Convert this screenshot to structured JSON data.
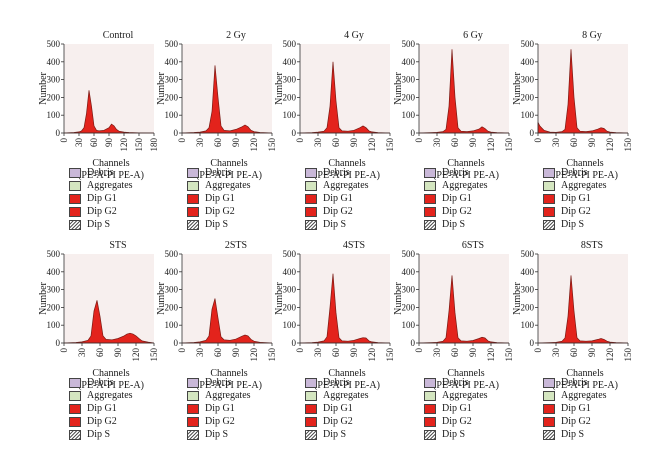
{
  "colors": {
    "plot_bg": "#f7efee",
    "fill": "#e3231c",
    "fill_edge": "#7a1a14",
    "debris": "#c9b8d8",
    "aggregates": "#d4e6c0",
    "dip_g1": "#e3231c",
    "dip_g2": "#e3231c",
    "axis": "#333333"
  },
  "common": {
    "ylabel": "Number",
    "xlabel_line1": "Channels",
    "xlabel_line2": "(PE-A-PI PE-A)",
    "legend": [
      {
        "label": "Debris",
        "icon": "debris-swatch"
      },
      {
        "label": "Aggregates",
        "icon": "aggregates-swatch"
      },
      {
        "label": "Dip G1",
        "icon": "dip-g1-swatch"
      },
      {
        "label": "Dip G2",
        "icon": "dip-g2-swatch"
      },
      {
        "label": "Dip S",
        "icon": "dip-s-swatch"
      }
    ]
  },
  "chart_data": [
    {
      "type": "area",
      "title": "Control",
      "xlabel": "Channels (PE-A-PI PE-A)",
      "ylabel": "Number",
      "xlim": [
        0,
        180
      ],
      "ylim": [
        0,
        500
      ],
      "xticks": [
        0,
        30,
        60,
        90,
        120,
        150,
        180
      ],
      "yticks": [
        0,
        100,
        200,
        300,
        400,
        500
      ],
      "x": [
        0,
        20,
        30,
        35,
        40,
        45,
        50,
        55,
        60,
        65,
        70,
        80,
        90,
        95,
        100,
        105,
        110,
        120,
        130,
        150,
        180
      ],
      "y": [
        0,
        3,
        6,
        12,
        30,
        110,
        240,
        150,
        40,
        15,
        12,
        15,
        30,
        50,
        40,
        20,
        10,
        5,
        3,
        1,
        0
      ]
    },
    {
      "type": "area",
      "title": "2 Gy",
      "xlabel": "Channels (PE-A-PI PE-A)",
      "ylabel": "Number",
      "xlim": [
        0,
        150
      ],
      "ylim": [
        0,
        500
      ],
      "xticks": [
        0,
        30,
        60,
        90,
        120,
        150
      ],
      "yticks": [
        0,
        100,
        200,
        300,
        400,
        500
      ],
      "x": [
        0,
        20,
        30,
        40,
        45,
        50,
        55,
        60,
        65,
        70,
        80,
        90,
        100,
        105,
        110,
        115,
        120,
        130,
        150
      ],
      "y": [
        0,
        3,
        5,
        12,
        30,
        120,
        380,
        200,
        40,
        15,
        12,
        20,
        35,
        45,
        35,
        15,
        8,
        3,
        0
      ]
    },
    {
      "type": "area",
      "title": "4 Gy",
      "xlabel": "Channels (PE-A-PI PE-A)",
      "ylabel": "Number",
      "xlim": [
        0,
        150
      ],
      "ylim": [
        0,
        500
      ],
      "xticks": [
        0,
        30,
        60,
        90,
        120,
        150
      ],
      "yticks": [
        0,
        100,
        200,
        300,
        400,
        500
      ],
      "x": [
        0,
        20,
        30,
        40,
        45,
        50,
        55,
        60,
        65,
        70,
        80,
        90,
        100,
        105,
        110,
        115,
        120,
        130,
        150
      ],
      "y": [
        0,
        2,
        5,
        10,
        30,
        150,
        400,
        180,
        30,
        12,
        10,
        15,
        30,
        40,
        30,
        12,
        6,
        2,
        0
      ]
    },
    {
      "type": "area",
      "title": "6 Gy",
      "xlabel": "Channels (PE-A-PI PE-A)",
      "ylabel": "Number",
      "xlim": [
        0,
        150
      ],
      "ylim": [
        0,
        500
      ],
      "xticks": [
        0,
        30,
        60,
        90,
        120,
        150
      ],
      "yticks": [
        0,
        100,
        200,
        300,
        400,
        500
      ],
      "x": [
        0,
        20,
        30,
        40,
        45,
        50,
        55,
        60,
        65,
        70,
        80,
        90,
        100,
        105,
        110,
        115,
        120,
        130,
        150
      ],
      "y": [
        0,
        2,
        4,
        8,
        20,
        150,
        470,
        200,
        30,
        10,
        8,
        12,
        22,
        35,
        25,
        10,
        5,
        2,
        0
      ]
    },
    {
      "type": "area",
      "title": "8 Gy",
      "xlabel": "Channels (PE-A-PI PE-A)",
      "ylabel": "Number",
      "xlim": [
        0,
        150
      ],
      "ylim": [
        0,
        500
      ],
      "xticks": [
        0,
        30,
        60,
        90,
        120,
        150
      ],
      "yticks": [
        0,
        100,
        200,
        300,
        400,
        500
      ],
      "x": [
        0,
        3,
        10,
        20,
        30,
        40,
        45,
        50,
        55,
        60,
        65,
        70,
        80,
        90,
        100,
        105,
        110,
        115,
        120,
        130,
        150
      ],
      "y": [
        60,
        40,
        15,
        5,
        4,
        8,
        20,
        160,
        470,
        200,
        30,
        10,
        8,
        12,
        22,
        30,
        25,
        10,
        5,
        2,
        0
      ]
    },
    {
      "type": "area",
      "title": "STS",
      "xlabel": "Channels (PE-A-PI PE-A)",
      "ylabel": "Number",
      "xlim": [
        0,
        150
      ],
      "ylim": [
        0,
        500
      ],
      "xticks": [
        0,
        30,
        60,
        90,
        120,
        150
      ],
      "yticks": [
        0,
        100,
        200,
        300,
        400,
        500
      ],
      "x": [
        0,
        20,
        30,
        40,
        45,
        50,
        55,
        60,
        65,
        70,
        80,
        90,
        100,
        105,
        110,
        115,
        120,
        125,
        130,
        140,
        150
      ],
      "y": [
        0,
        3,
        6,
        15,
        40,
        180,
        240,
        150,
        40,
        20,
        18,
        25,
        40,
        50,
        55,
        50,
        40,
        25,
        12,
        5,
        0
      ]
    },
    {
      "type": "area",
      "title": "2STS",
      "xlabel": "Channels (PE-A-PI PE-A)",
      "ylabel": "Number",
      "xlim": [
        0,
        150
      ],
      "ylim": [
        0,
        500
      ],
      "xticks": [
        0,
        30,
        60,
        90,
        120,
        150
      ],
      "yticks": [
        0,
        100,
        200,
        300,
        400,
        500
      ],
      "x": [
        0,
        20,
        30,
        40,
        45,
        50,
        55,
        60,
        65,
        70,
        80,
        90,
        100,
        105,
        110,
        115,
        120,
        130,
        150
      ],
      "y": [
        0,
        3,
        6,
        15,
        40,
        190,
        250,
        140,
        35,
        18,
        15,
        22,
        38,
        45,
        40,
        20,
        10,
        4,
        0
      ]
    },
    {
      "type": "area",
      "title": "4STS",
      "xlabel": "Channels (PE-A-PI PE-A)",
      "ylabel": "Number",
      "xlim": [
        0,
        150
      ],
      "ylim": [
        0,
        500
      ],
      "xticks": [
        0,
        30,
        60,
        90,
        120,
        150
      ],
      "yticks": [
        0,
        100,
        200,
        300,
        400,
        500
      ],
      "x": [
        0,
        20,
        30,
        40,
        45,
        50,
        55,
        60,
        65,
        70,
        80,
        90,
        100,
        105,
        110,
        115,
        120,
        130,
        150
      ],
      "y": [
        0,
        2,
        5,
        12,
        35,
        200,
        390,
        170,
        30,
        12,
        10,
        15,
        25,
        30,
        28,
        12,
        6,
        2,
        0
      ]
    },
    {
      "type": "area",
      "title": "6STS",
      "xlabel": "Channels (PE-A-PI PE-A)",
      "ylabel": "Number",
      "xlim": [
        0,
        150
      ],
      "ylim": [
        0,
        500
      ],
      "xticks": [
        0,
        30,
        60,
        90,
        120,
        150
      ],
      "yticks": [
        0,
        100,
        200,
        300,
        400,
        500
      ],
      "x": [
        0,
        20,
        30,
        40,
        45,
        50,
        55,
        60,
        65,
        70,
        80,
        90,
        100,
        105,
        110,
        115,
        120,
        130,
        150
      ],
      "y": [
        0,
        2,
        4,
        10,
        30,
        180,
        380,
        170,
        30,
        12,
        10,
        14,
        25,
        32,
        28,
        12,
        6,
        2,
        0
      ]
    },
    {
      "type": "area",
      "title": "8STS",
      "xlabel": "Channels (PE-A-PI PE-A)",
      "ylabel": "Number",
      "xlim": [
        0,
        150
      ],
      "ylim": [
        0,
        500
      ],
      "xticks": [
        0,
        30,
        60,
        90,
        120,
        150
      ],
      "yticks": [
        0,
        100,
        200,
        300,
        400,
        500
      ],
      "x": [
        0,
        20,
        30,
        40,
        45,
        50,
        55,
        60,
        65,
        70,
        80,
        90,
        100,
        105,
        110,
        115,
        120,
        130,
        150
      ],
      "y": [
        0,
        2,
        4,
        10,
        28,
        150,
        380,
        180,
        30,
        12,
        10,
        12,
        20,
        25,
        20,
        10,
        5,
        2,
        0
      ]
    }
  ]
}
